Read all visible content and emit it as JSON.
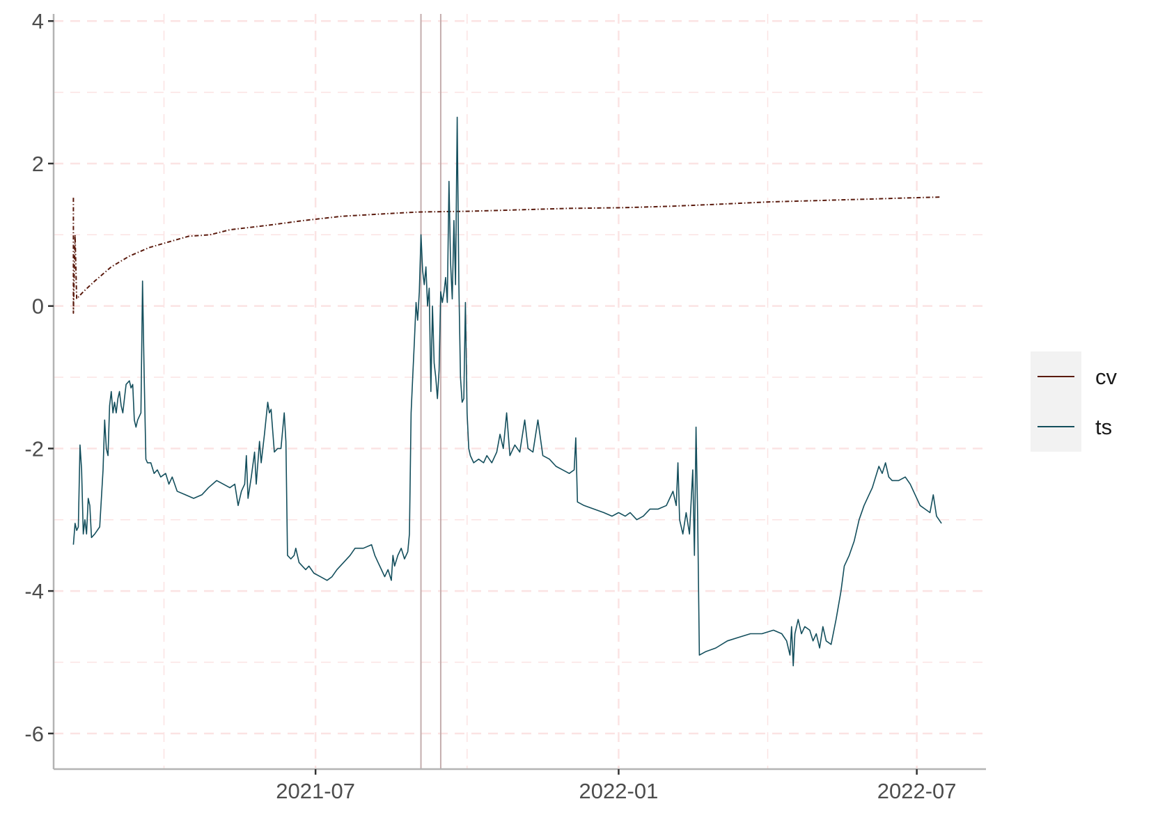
{
  "chart_data": {
    "type": "line",
    "title": "",
    "xlabel": "",
    "ylabel": "",
    "x_axis": {
      "type": "date",
      "range": [
        "2021-01-23",
        "2022-08-12"
      ],
      "ticks": [
        "2021-07",
        "2022-01",
        "2022-07"
      ]
    },
    "y_axis": {
      "range": [
        -6.5,
        4.1
      ],
      "ticks": [
        4,
        2,
        0,
        -2,
        -4,
        -6
      ],
      "tick_labels": [
        "4",
        "2",
        "0",
        "-2",
        "-4",
        "-6"
      ]
    },
    "grid": true,
    "grid_color": "#fbe3e3",
    "legend": {
      "position": "right",
      "entries": [
        {
          "label": "cv",
          "color": "#5a1a0d"
        },
        {
          "label": "ts",
          "color": "#134e5c"
        }
      ]
    },
    "vertical_lines": [
      "2021-09-03",
      "2021-09-15"
    ],
    "vertical_line_color": "#c4adad",
    "series": [
      {
        "name": "cv",
        "color": "#5a1a0d",
        "dash": "dotdash",
        "points": [
          [
            "2021-02-04",
            1.52
          ],
          [
            "2021-02-04",
            -0.1
          ],
          [
            "2021-02-05",
            1.0
          ],
          [
            "2021-02-06",
            0.1
          ],
          [
            "2021-02-10",
            0.2
          ],
          [
            "2021-02-17",
            0.35
          ],
          [
            "2021-02-27",
            0.55
          ],
          [
            "2021-03-10",
            0.7
          ],
          [
            "2021-03-22",
            0.82
          ],
          [
            "2021-04-03",
            0.9
          ],
          [
            "2021-04-15",
            0.98
          ],
          [
            "2021-04-28",
            1.0
          ],
          [
            "2021-05-10",
            1.07
          ],
          [
            "2021-06-01",
            1.13
          ],
          [
            "2021-06-24",
            1.2
          ],
          [
            "2021-07-17",
            1.26
          ],
          [
            "2021-08-09",
            1.29
          ],
          [
            "2021-09-01",
            1.32
          ],
          [
            "2021-10-03",
            1.33
          ],
          [
            "2021-11-01",
            1.35
          ],
          [
            "2021-12-01",
            1.37
          ],
          [
            "2022-01-03",
            1.38
          ],
          [
            "2022-02-01",
            1.4
          ],
          [
            "2022-03-04",
            1.43
          ],
          [
            "2022-04-01",
            1.46
          ],
          [
            "2022-05-01",
            1.48
          ],
          [
            "2022-06-01",
            1.5
          ],
          [
            "2022-06-29",
            1.52
          ],
          [
            "2022-07-16",
            1.53
          ]
        ]
      },
      {
        "name": "ts",
        "color": "#134e5c",
        "dash": "solid",
        "points": [
          [
            "2021-02-04",
            -3.35
          ],
          [
            "2021-02-05",
            -3.05
          ],
          [
            "2021-02-06",
            -3.15
          ],
          [
            "2021-02-07",
            -3.1
          ],
          [
            "2021-02-08",
            -1.95
          ],
          [
            "2021-02-09",
            -2.3
          ],
          [
            "2021-02-10",
            -3.2
          ],
          [
            "2021-02-11",
            -3.0
          ],
          [
            "2021-02-12",
            -3.2
          ],
          [
            "2021-02-13",
            -2.7
          ],
          [
            "2021-02-14",
            -2.8
          ],
          [
            "2021-02-15",
            -3.25
          ],
          [
            "2021-02-17",
            -3.2
          ],
          [
            "2021-02-20",
            -3.1
          ],
          [
            "2021-02-22",
            -2.3
          ],
          [
            "2021-02-23",
            -1.6
          ],
          [
            "2021-02-24",
            -2.0
          ],
          [
            "2021-02-25",
            -2.1
          ],
          [
            "2021-02-26",
            -1.4
          ],
          [
            "2021-02-27",
            -1.2
          ],
          [
            "2021-02-28",
            -1.5
          ],
          [
            "2021-03-01",
            -1.35
          ],
          [
            "2021-03-02",
            -1.5
          ],
          [
            "2021-03-03",
            -1.3
          ],
          [
            "2021-03-04",
            -1.2
          ],
          [
            "2021-03-05",
            -1.4
          ],
          [
            "2021-03-06",
            -1.5
          ],
          [
            "2021-03-07",
            -1.3
          ],
          [
            "2021-03-08",
            -1.1
          ],
          [
            "2021-03-10",
            -1.05
          ],
          [
            "2021-03-11",
            -1.15
          ],
          [
            "2021-03-12",
            -1.1
          ],
          [
            "2021-03-13",
            -1.6
          ],
          [
            "2021-03-14",
            -1.7
          ],
          [
            "2021-03-15",
            -1.6
          ],
          [
            "2021-03-17",
            -1.5
          ],
          [
            "2021-03-18",
            0.35
          ],
          [
            "2021-03-19",
            -1.0
          ],
          [
            "2021-03-20",
            -2.15
          ],
          [
            "2021-03-21",
            -2.2
          ],
          [
            "2021-03-23",
            -2.2
          ],
          [
            "2021-03-25",
            -2.35
          ],
          [
            "2021-03-27",
            -2.3
          ],
          [
            "2021-03-29",
            -2.4
          ],
          [
            "2021-04-01",
            -2.35
          ],
          [
            "2021-04-03",
            -2.5
          ],
          [
            "2021-04-05",
            -2.4
          ],
          [
            "2021-04-08",
            -2.6
          ],
          [
            "2021-04-13",
            -2.65
          ],
          [
            "2021-04-18",
            -2.7
          ],
          [
            "2021-04-23",
            -2.65
          ],
          [
            "2021-04-27",
            -2.55
          ],
          [
            "2021-05-02",
            -2.45
          ],
          [
            "2021-05-06",
            -2.5
          ],
          [
            "2021-05-10",
            -2.55
          ],
          [
            "2021-05-13",
            -2.5
          ],
          [
            "2021-05-15",
            -2.8
          ],
          [
            "2021-05-17",
            -2.6
          ],
          [
            "2021-05-19",
            -2.5
          ],
          [
            "2021-05-20",
            -2.1
          ],
          [
            "2021-05-21",
            -2.7
          ],
          [
            "2021-05-23",
            -2.4
          ],
          [
            "2021-05-25",
            -2.05
          ],
          [
            "2021-05-26",
            -2.5
          ],
          [
            "2021-05-28",
            -1.9
          ],
          [
            "2021-05-29",
            -2.2
          ],
          [
            "2021-05-31",
            -1.8
          ],
          [
            "2021-06-02",
            -1.35
          ],
          [
            "2021-06-03",
            -1.5
          ],
          [
            "2021-06-04",
            -1.45
          ],
          [
            "2021-06-06",
            -2.05
          ],
          [
            "2021-06-08",
            -2.0
          ],
          [
            "2021-06-10",
            -2.0
          ],
          [
            "2021-06-12",
            -1.5
          ],
          [
            "2021-06-13",
            -1.9
          ],
          [
            "2021-06-14",
            -3.5
          ],
          [
            "2021-06-16",
            -3.55
          ],
          [
            "2021-06-18",
            -3.5
          ],
          [
            "2021-06-19",
            -3.4
          ],
          [
            "2021-06-21",
            -3.6
          ],
          [
            "2021-06-23",
            -3.65
          ],
          [
            "2021-06-25",
            -3.7
          ],
          [
            "2021-06-27",
            -3.65
          ],
          [
            "2021-06-30",
            -3.75
          ],
          [
            "2021-07-04",
            -3.8
          ],
          [
            "2021-07-08",
            -3.85
          ],
          [
            "2021-07-11",
            -3.8
          ],
          [
            "2021-07-14",
            -3.7
          ],
          [
            "2021-07-18",
            -3.6
          ],
          [
            "2021-07-22",
            -3.5
          ],
          [
            "2021-07-25",
            -3.4
          ],
          [
            "2021-07-30",
            -3.4
          ],
          [
            "2021-08-04",
            -3.35
          ],
          [
            "2021-08-06",
            -3.5
          ],
          [
            "2021-08-08",
            -3.6
          ],
          [
            "2021-08-10",
            -3.7
          ],
          [
            "2021-08-12",
            -3.8
          ],
          [
            "2021-08-14",
            -3.7
          ],
          [
            "2021-08-16",
            -3.85
          ],
          [
            "2021-08-17",
            -3.5
          ],
          [
            "2021-08-18",
            -3.65
          ],
          [
            "2021-08-20",
            -3.5
          ],
          [
            "2021-08-22",
            -3.4
          ],
          [
            "2021-08-24",
            -3.55
          ],
          [
            "2021-08-26",
            -3.45
          ],
          [
            "2021-08-27",
            -3.2
          ],
          [
            "2021-08-28",
            -1.5
          ],
          [
            "2021-08-29",
            -1.0
          ],
          [
            "2021-08-30",
            -0.5
          ],
          [
            "2021-08-31",
            0.05
          ],
          [
            "2021-09-01",
            -0.2
          ],
          [
            "2021-09-02",
            0.2
          ],
          [
            "2021-09-03",
            1.0
          ],
          [
            "2021-09-04",
            0.5
          ],
          [
            "2021-09-05",
            0.3
          ],
          [
            "2021-09-06",
            0.55
          ],
          [
            "2021-09-07",
            0.0
          ],
          [
            "2021-09-08",
            0.25
          ],
          [
            "2021-09-09",
            -1.2
          ],
          [
            "2021-09-10",
            0.0
          ],
          [
            "2021-09-11",
            -0.8
          ],
          [
            "2021-09-12",
            -1.0
          ],
          [
            "2021-09-13",
            -1.3
          ],
          [
            "2021-09-14",
            -0.9
          ],
          [
            "2021-09-15",
            0.2
          ],
          [
            "2021-09-16",
            0.05
          ],
          [
            "2021-09-17",
            0.2
          ],
          [
            "2021-09-18",
            0.4
          ],
          [
            "2021-09-19",
            0.05
          ],
          [
            "2021-09-20",
            1.75
          ],
          [
            "2021-09-21",
            0.6
          ],
          [
            "2021-09-22",
            0.1
          ],
          [
            "2021-09-23",
            1.2
          ],
          [
            "2021-09-24",
            0.3
          ],
          [
            "2021-09-25",
            2.65
          ],
          [
            "2021-09-26",
            0.3
          ],
          [
            "2021-09-27",
            -1.0
          ],
          [
            "2021-09-28",
            -1.35
          ],
          [
            "2021-09-29",
            -1.3
          ],
          [
            "2021-09-30",
            0.05
          ],
          [
            "2021-10-01",
            -1.5
          ],
          [
            "2021-10-02",
            -2.0
          ],
          [
            "2021-10-03",
            -2.1
          ],
          [
            "2021-10-05",
            -2.2
          ],
          [
            "2021-10-08",
            -2.15
          ],
          [
            "2021-10-11",
            -2.2
          ],
          [
            "2021-10-13",
            -2.1
          ],
          [
            "2021-10-16",
            -2.2
          ],
          [
            "2021-10-19",
            -2.05
          ],
          [
            "2021-10-21",
            -1.8
          ],
          [
            "2021-10-23",
            -2.0
          ],
          [
            "2021-10-25",
            -1.5
          ],
          [
            "2021-10-27",
            -2.1
          ],
          [
            "2021-10-30",
            -1.95
          ],
          [
            "2021-11-02",
            -2.05
          ],
          [
            "2021-11-05",
            -1.6
          ],
          [
            "2021-11-07",
            -2.0
          ],
          [
            "2021-11-10",
            -2.05
          ],
          [
            "2021-11-13",
            -1.6
          ],
          [
            "2021-11-16",
            -2.1
          ],
          [
            "2021-11-20",
            -2.15
          ],
          [
            "2021-11-24",
            -2.25
          ],
          [
            "2021-11-28",
            -2.3
          ],
          [
            "2021-12-02",
            -2.35
          ],
          [
            "2021-12-05",
            -2.3
          ],
          [
            "2021-12-06",
            -1.85
          ],
          [
            "2021-12-07",
            -2.75
          ],
          [
            "2021-12-11",
            -2.8
          ],
          [
            "2021-12-17",
            -2.85
          ],
          [
            "2021-12-23",
            -2.9
          ],
          [
            "2021-12-28",
            -2.95
          ],
          [
            "2022-01-01",
            -2.9
          ],
          [
            "2022-01-05",
            -2.95
          ],
          [
            "2022-01-08",
            -2.9
          ],
          [
            "2022-01-12",
            -3.0
          ],
          [
            "2022-01-16",
            -2.95
          ],
          [
            "2022-01-20",
            -2.85
          ],
          [
            "2022-01-25",
            -2.85
          ],
          [
            "2022-01-30",
            -2.8
          ],
          [
            "2022-02-01",
            -2.7
          ],
          [
            "2022-02-03",
            -2.6
          ],
          [
            "2022-02-05",
            -2.8
          ],
          [
            "2022-02-06",
            -2.2
          ],
          [
            "2022-02-07",
            -3.0
          ],
          [
            "2022-02-09",
            -3.2
          ],
          [
            "2022-02-11",
            -2.9
          ],
          [
            "2022-02-13",
            -3.2
          ],
          [
            "2022-02-15",
            -2.3
          ],
          [
            "2022-02-16",
            -3.5
          ],
          [
            "2022-02-17",
            -1.7
          ],
          [
            "2022-02-18",
            -3.0
          ],
          [
            "2022-02-19",
            -4.9
          ],
          [
            "2022-02-23",
            -4.85
          ],
          [
            "2022-03-01",
            -4.8
          ],
          [
            "2022-03-08",
            -4.7
          ],
          [
            "2022-03-15",
            -4.65
          ],
          [
            "2022-03-22",
            -4.6
          ],
          [
            "2022-03-29",
            -4.6
          ],
          [
            "2022-04-05",
            -4.55
          ],
          [
            "2022-04-10",
            -4.6
          ],
          [
            "2022-04-13",
            -4.7
          ],
          [
            "2022-04-15",
            -4.9
          ],
          [
            "2022-04-16",
            -4.5
          ],
          [
            "2022-04-17",
            -5.05
          ],
          [
            "2022-04-18",
            -4.6
          ],
          [
            "2022-04-20",
            -4.4
          ],
          [
            "2022-04-22",
            -4.6
          ],
          [
            "2022-04-24",
            -4.5
          ],
          [
            "2022-04-27",
            -4.55
          ],
          [
            "2022-04-29",
            -4.7
          ],
          [
            "2022-05-01",
            -4.6
          ],
          [
            "2022-05-03",
            -4.8
          ],
          [
            "2022-05-05",
            -4.5
          ],
          [
            "2022-05-07",
            -4.7
          ],
          [
            "2022-05-10",
            -4.75
          ],
          [
            "2022-05-13",
            -4.4
          ],
          [
            "2022-05-16",
            -4.0
          ],
          [
            "2022-05-18",
            -3.65
          ],
          [
            "2022-05-21",
            -3.5
          ],
          [
            "2022-05-24",
            -3.3
          ],
          [
            "2022-05-27",
            -3.0
          ],
          [
            "2022-05-30",
            -2.8
          ],
          [
            "2022-06-02",
            -2.65
          ],
          [
            "2022-06-04",
            -2.55
          ],
          [
            "2022-06-06",
            -2.4
          ],
          [
            "2022-06-08",
            -2.25
          ],
          [
            "2022-06-10",
            -2.35
          ],
          [
            "2022-06-12",
            -2.2
          ],
          [
            "2022-06-14",
            -2.4
          ],
          [
            "2022-06-16",
            -2.45
          ],
          [
            "2022-06-20",
            -2.45
          ],
          [
            "2022-06-24",
            -2.4
          ],
          [
            "2022-06-27",
            -2.5
          ],
          [
            "2022-06-30",
            -2.65
          ],
          [
            "2022-07-03",
            -2.8
          ],
          [
            "2022-07-06",
            -2.85
          ],
          [
            "2022-07-09",
            -2.9
          ],
          [
            "2022-07-11",
            -2.65
          ],
          [
            "2022-07-13",
            -2.95
          ],
          [
            "2022-07-16",
            -3.05
          ]
        ]
      }
    ]
  }
}
